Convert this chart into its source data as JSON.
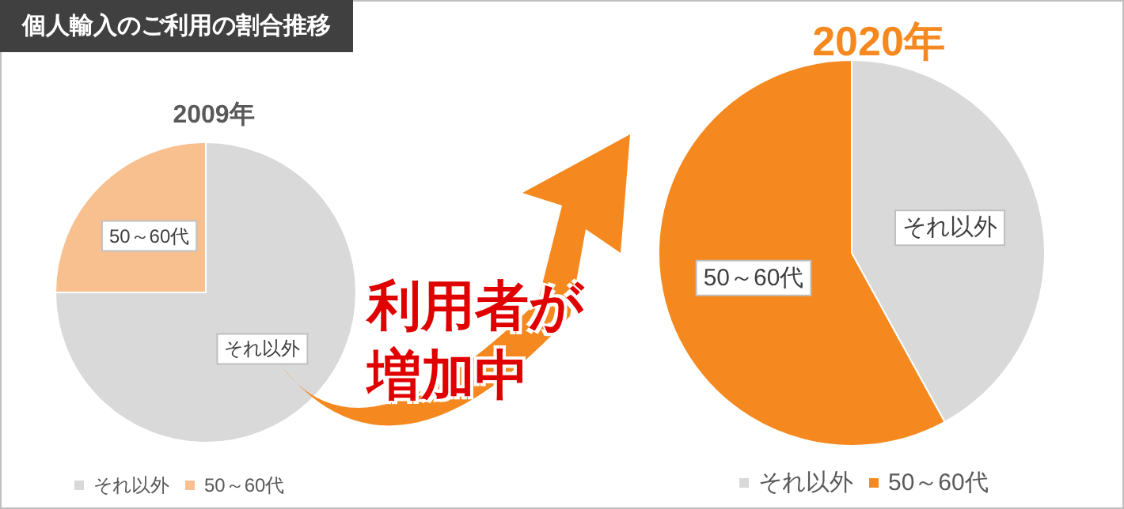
{
  "chart_data": [
    {
      "type": "pie",
      "title": "2009年",
      "categories": [
        "それ以外",
        "50～60代"
      ],
      "values": [
        75,
        25
      ],
      "colors": [
        "#d9d9d9",
        "#f8c08f"
      ],
      "legend": "bottom",
      "annotations": [
        "個人輸入のご利用の割合推移",
        "利用者が増加中"
      ]
    },
    {
      "type": "pie",
      "title": "2020年",
      "categories": [
        "それ以外",
        "50～60代"
      ],
      "values": [
        42,
        58
      ],
      "colors": [
        "#d9d9d9",
        "#f5891f"
      ],
      "legend": "bottom"
    }
  ]
}
